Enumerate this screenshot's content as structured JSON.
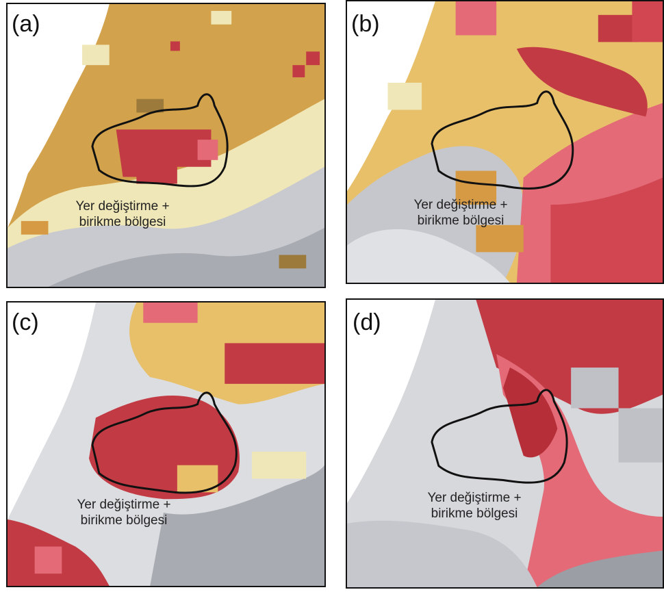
{
  "panels": [
    {
      "label": "(a)",
      "zone_caption_line1": "Yer değiştirme +",
      "zone_caption_line2": "birikme bölgesi"
    },
    {
      "label": "(b)",
      "zone_caption_line1": "Yer değiştirme +",
      "zone_caption_line2": "birikme bölgesi"
    },
    {
      "label": "(c)",
      "zone_caption_line1": "Yer değiştirme +",
      "zone_caption_line2": "birikme bölgesi"
    },
    {
      "label": "(d)",
      "zone_caption_line1": "Yer değiştirme +",
      "zone_caption_line2": "birikme bölgesi"
    }
  ],
  "colors": {
    "background": "#ffffff",
    "outline": "#111111",
    "palette": [
      "#c23a44",
      "#e36a76",
      "#d69a45",
      "#e8c06a",
      "#efe7b8",
      "#bfc1c6",
      "#dcdde0",
      "#9c7a3c"
    ]
  }
}
